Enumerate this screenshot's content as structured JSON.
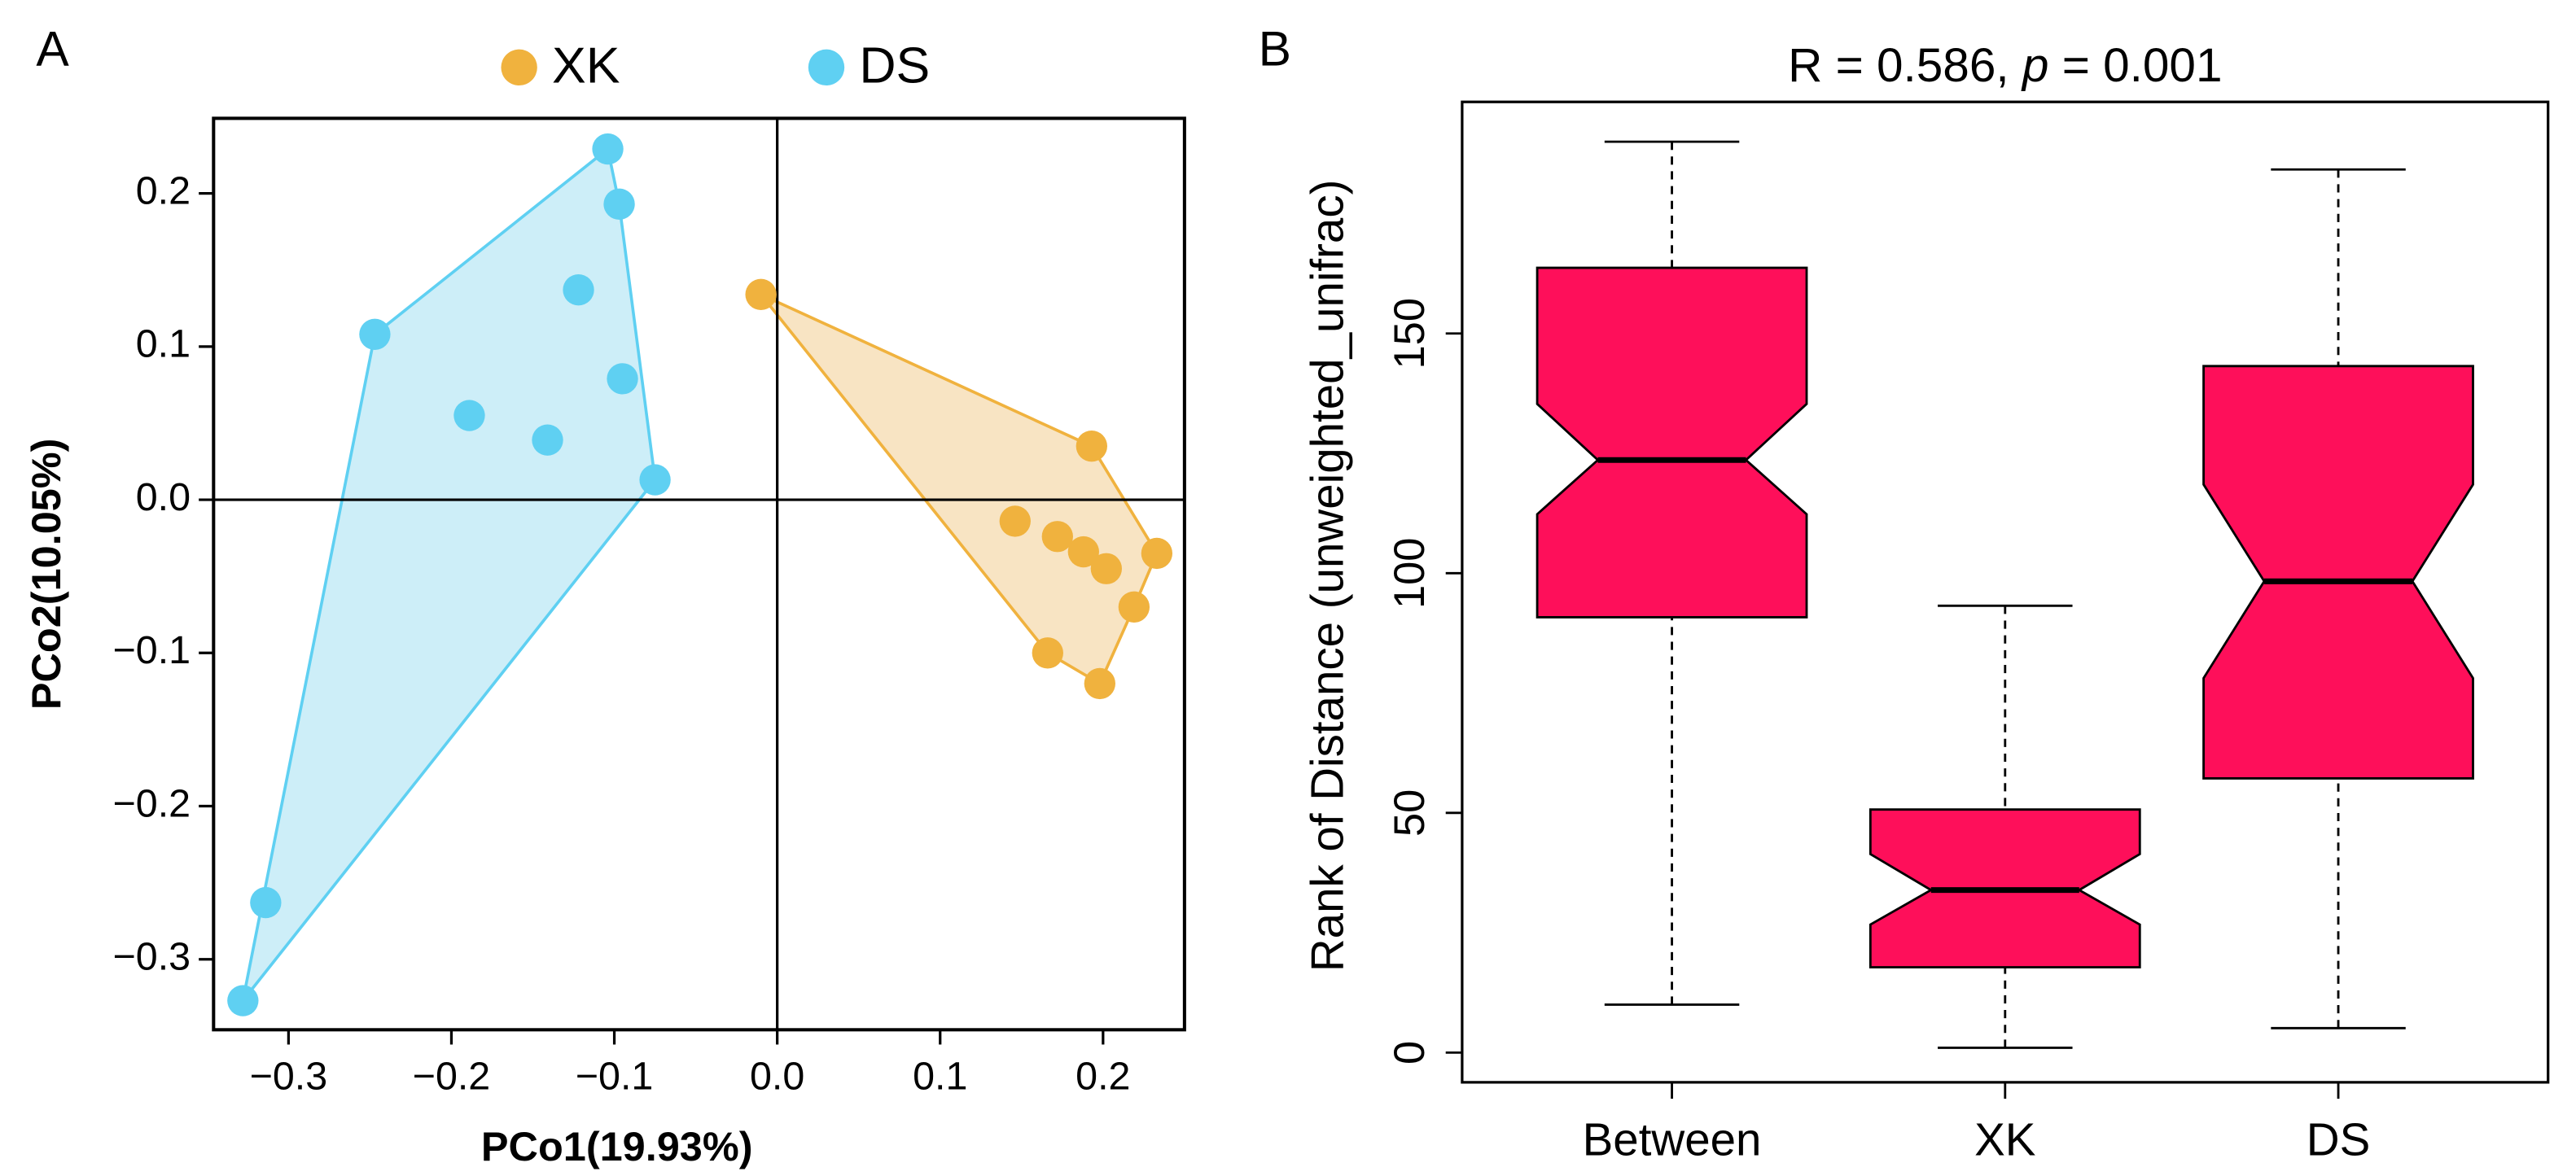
{
  "chart_data": [
    {
      "type": "scatter",
      "panel": "A",
      "xlabel": "PCo1(19.93%)",
      "ylabel": "PCo2(10.05%)",
      "xlim": [
        -0.346,
        0.25
      ],
      "ylim": [
        -0.346,
        0.249
      ],
      "xticks": [
        {
          "value": -0.3,
          "label": "−0.3"
        },
        {
          "value": -0.2,
          "label": "−0.2"
        },
        {
          "value": -0.1,
          "label": "−0.1"
        },
        {
          "value": 0,
          "label": "0.0"
        },
        0.1,
        0.2
      ],
      "yticks": [
        {
          "value": -0.3,
          "label": "−0.3"
        },
        {
          "value": -0.2,
          "label": "−0.2"
        },
        {
          "value": -0.1,
          "label": "−0.1"
        },
        {
          "value": 0,
          "label": "0.0"
        },
        0.1,
        0.2
      ],
      "reference_lines": true,
      "hull": true,
      "series": [
        {
          "name": "XK",
          "color": "#f0b23e",
          "hull_color": "#f8e4c3",
          "x": [
            -0.01,
            0.193,
            0.146,
            0.172,
            0.188,
            0.202,
            0.233,
            0.219,
            0.166,
            0.198
          ],
          "values": [
            0.134,
            0.035,
            -0.014,
            -0.024,
            -0.034,
            -0.045,
            -0.035,
            -0.07,
            -0.1,
            -0.12
          ]
        },
        {
          "name": "DS",
          "color": "#5fd0f2",
          "hull_color": "#cdeef8",
          "x": [
            -0.104,
            -0.097,
            -0.122,
            -0.247,
            -0.189,
            -0.141,
            -0.095,
            -0.075,
            -0.314,
            -0.328
          ],
          "values": [
            0.229,
            0.193,
            0.137,
            0.108,
            0.055,
            0.039,
            0.079,
            0.013,
            -0.263,
            -0.327
          ]
        }
      ]
    },
    {
      "type": "boxplot",
      "panel": "B",
      "title_parts": [
        "R =  0.586, ",
        "p",
        " =  0.001"
      ],
      "ylabel": "Rank of Distance (unweighted_unifrac)",
      "ylim": [
        -6.2,
        198.3
      ],
      "yticks": [
        0,
        50,
        100,
        150
      ],
      "color": "#fe0f5a",
      "categories": [
        "Between",
        "XK",
        "DS"
      ],
      "boxes": [
        {
          "low": 10,
          "q1": 90.8,
          "median": 123.6,
          "q3": 163.7,
          "high": 190,
          "notch": [
            112.3,
            135.3
          ]
        },
        {
          "low": 1,
          "q1": 17.8,
          "median": 33.9,
          "q3": 50.7,
          "high": 93.2,
          "notch": [
            26.7,
            41.4
          ]
        },
        {
          "low": 5.1,
          "q1": 57.2,
          "median": 98.3,
          "q3": 143.2,
          "high": 184.2,
          "notch": [
            78.1,
            118.5
          ]
        }
      ]
    }
  ]
}
